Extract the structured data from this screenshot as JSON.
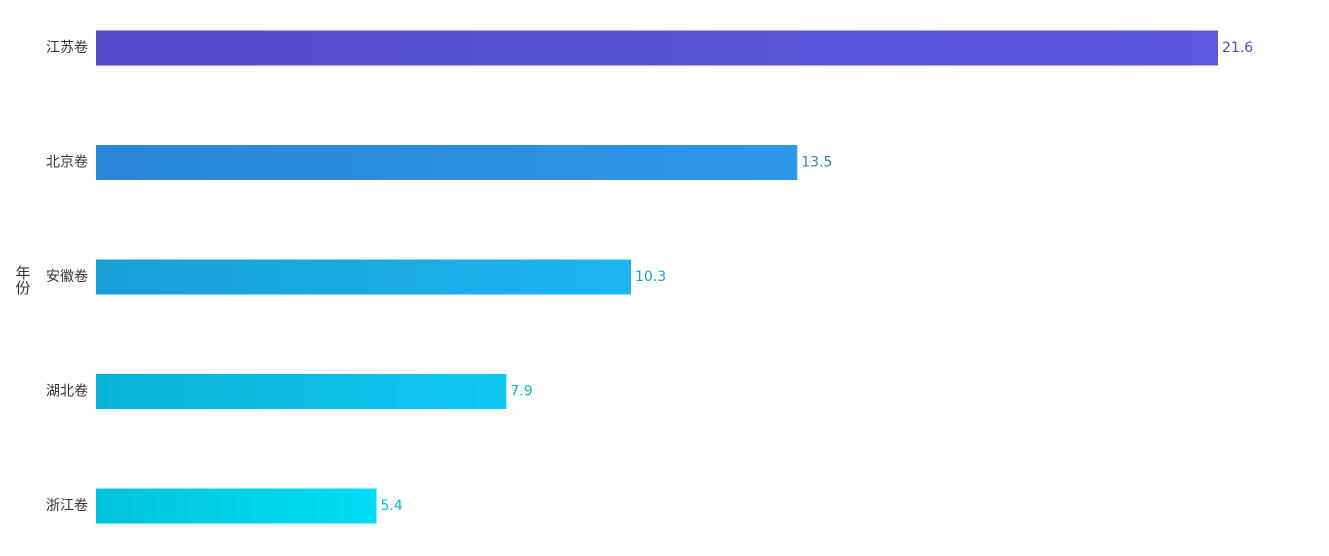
{
  "chart_data": {
    "type": "bar",
    "orientation": "horizontal",
    "y_label": "年份",
    "categories": [
      "江苏卷",
      "北京卷",
      "安徽卷",
      "湖北卷",
      "浙江卷"
    ],
    "values": [
      21.6,
      13.5,
      10.3,
      7.9,
      5.4
    ],
    "colors": [
      [
        "#5449c6",
        "#5d57e2"
      ],
      [
        "#2a86d6",
        "#2d98eb"
      ],
      [
        "#18a0d6",
        "#1db5f0"
      ],
      [
        "#0ab2d8",
        "#0fc7f0"
      ],
      [
        "#00c3da",
        "#00ddf5"
      ]
    ]
  }
}
